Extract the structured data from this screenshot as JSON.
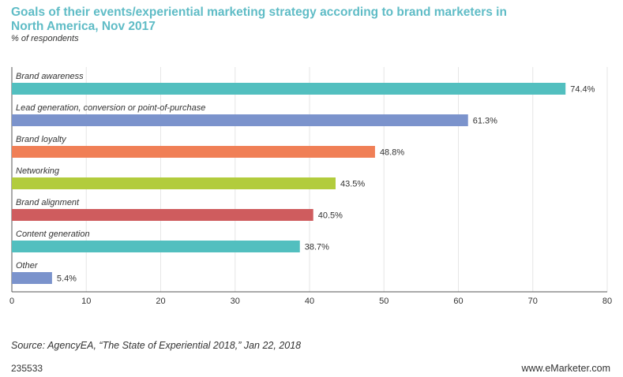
{
  "chart_data": {
    "type": "bar",
    "orientation": "horizontal",
    "title": "Goals of their events/experiential marketing strategy according to brand marketers in North America, Nov 2017",
    "subtitle": "% of respondents",
    "categories": [
      "Brand awareness",
      "Lead generation, conversion or point-of-purchase",
      "Brand loyalty",
      "Networking",
      "Brand alignment",
      "Content generation",
      "Other"
    ],
    "values": [
      74.4,
      61.3,
      48.8,
      43.5,
      40.5,
      38.7,
      5.4
    ],
    "value_labels": [
      "74.4%",
      "61.3%",
      "48.8%",
      "43.5%",
      "40.5%",
      "38.7%",
      "5.4%"
    ],
    "colors": [
      "#52bfbf",
      "#7b93cc",
      "#f07f56",
      "#b2cc3d",
      "#cf5c5e",
      "#52bfbf",
      "#7b93cc"
    ],
    "xlim": [
      0,
      80
    ],
    "xticks": [
      "0",
      "10",
      "20",
      "30",
      "40",
      "50",
      "60",
      "70",
      "80"
    ],
    "grid": true
  },
  "footer": {
    "source": "Source: AgencyEA, “The State of Experiential 2018,” Jan 22, 2018",
    "chart_id": "235533",
    "site": "www.eMarketer.com"
  }
}
